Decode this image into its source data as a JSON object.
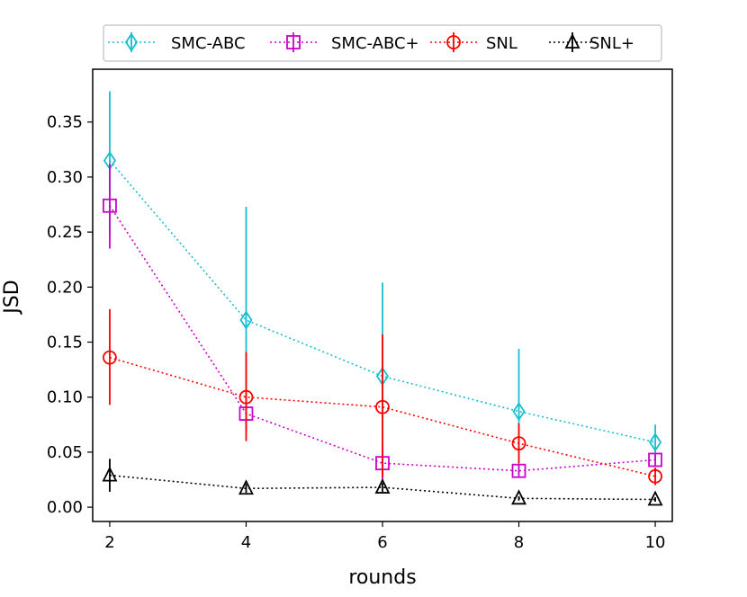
{
  "chart_data": {
    "type": "line",
    "title": "",
    "xlabel": "rounds",
    "ylabel": "JSD",
    "x": [
      2,
      4,
      6,
      8,
      10
    ],
    "xticks": [
      "2",
      "4",
      "6",
      "8",
      "10"
    ],
    "yticks": [
      "0.00",
      "0.05",
      "0.10",
      "0.15",
      "0.20",
      "0.25",
      "0.30",
      "0.35"
    ],
    "xlim": [
      1.75,
      10.25
    ],
    "ylim": [
      -0.013,
      0.398
    ],
    "legend_position": "top",
    "series": [
      {
        "name": "SMC-ABC",
        "color": "#17becf",
        "marker": "diamond",
        "values": [
          0.315,
          0.17,
          0.119,
          0.087,
          0.059
        ],
        "err_low": [
          0.247,
          0.067,
          0.034,
          0.03,
          0.043
        ],
        "err_high": [
          0.378,
          0.273,
          0.204,
          0.144,
          0.075
        ]
      },
      {
        "name": "SMC-ABC+",
        "color": "#cc00cc",
        "marker": "square",
        "values": [
          0.274,
          0.085,
          0.04,
          0.033,
          0.043
        ],
        "err_low": [
          0.235,
          0.07,
          0.025,
          0.028,
          0.038
        ],
        "err_high": [
          0.312,
          0.1,
          0.055,
          0.038,
          0.048
        ]
      },
      {
        "name": "SNL",
        "color": "#ff0000",
        "marker": "circle",
        "values": [
          0.136,
          0.1,
          0.091,
          0.058,
          0.028
        ],
        "err_low": [
          0.093,
          0.06,
          0.027,
          0.04,
          0.02
        ],
        "err_high": [
          0.18,
          0.141,
          0.157,
          0.076,
          0.036
        ]
      },
      {
        "name": "SNL+",
        "color": "#000000",
        "marker": "triangle",
        "values": [
          0.029,
          0.017,
          0.018,
          0.008,
          0.007
        ],
        "err_low": [
          0.014,
          0.013,
          0.014,
          0.006,
          0.005
        ],
        "err_high": [
          0.044,
          0.021,
          0.022,
          0.01,
          0.009
        ]
      }
    ]
  }
}
